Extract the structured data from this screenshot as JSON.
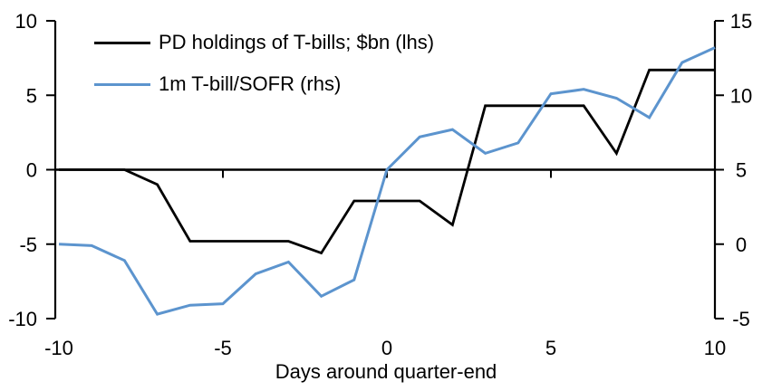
{
  "chart_data": {
    "type": "line",
    "title": "",
    "xlabel": "Days around quarter-end",
    "grid": false,
    "legend_position": "top-left",
    "x": [
      -10,
      -9,
      -8,
      -7,
      -6,
      -5,
      -4,
      -3,
      -2,
      -1,
      0,
      1,
      2,
      3,
      4,
      5,
      6,
      7,
      8,
      9,
      10
    ],
    "series": [
      {
        "name": "PD holdings of T-bills; $bn (lhs)",
        "axis": "left",
        "color": "#000000",
        "values": [
          0,
          0,
          0,
          -1.0,
          -4.8,
          -4.8,
          -4.8,
          -4.8,
          -5.6,
          -2.1,
          -2.1,
          -2.1,
          -3.7,
          4.3,
          4.3,
          4.3,
          4.3,
          1.1,
          6.7,
          6.7,
          6.7
        ]
      },
      {
        "name": "1m T-bill/SOFR (rhs)",
        "axis": "right",
        "color": "#5C94CE",
        "values": [
          0.0,
          -0.1,
          -1.1,
          -4.7,
          -4.1,
          -4.0,
          -2.0,
          -1.2,
          -3.5,
          -2.4,
          5.0,
          7.2,
          7.7,
          6.1,
          6.8,
          10.1,
          10.4,
          9.8,
          8.5,
          12.2,
          13.2
        ]
      }
    ],
    "left_axis": {
      "range": [
        -10,
        10
      ],
      "ticks": [
        10,
        5,
        0,
        -5,
        -10
      ]
    },
    "right_axis": {
      "range": [
        -5,
        15
      ],
      "ticks": [
        15,
        10,
        5,
        0,
        -5
      ]
    },
    "x_axis": {
      "range": [
        -10,
        10
      ],
      "tick_labels": [
        -10,
        -5,
        0,
        5,
        10
      ],
      "tick_marks": [
        -5,
        0,
        5
      ]
    }
  }
}
